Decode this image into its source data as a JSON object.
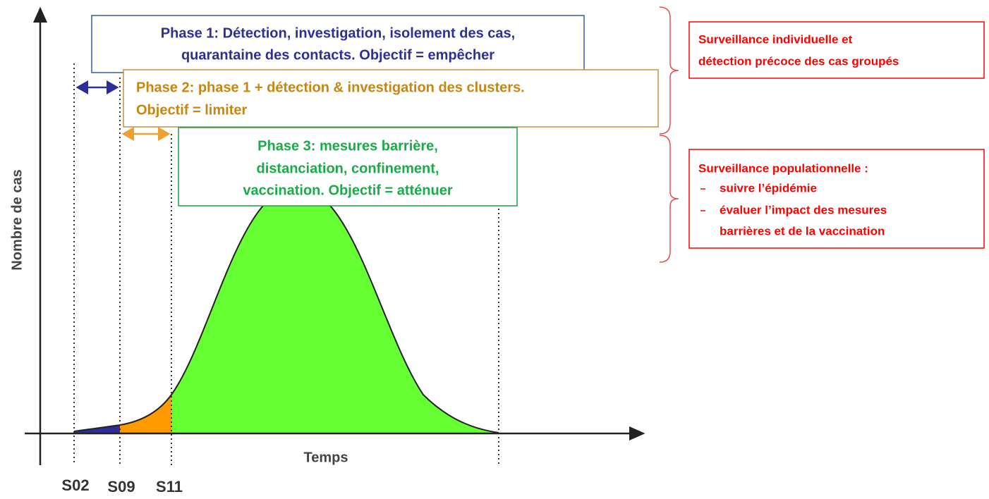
{
  "axes": {
    "y_label": "Nombre de cas",
    "x_label": "Temps",
    "week_labels": [
      "S02",
      "S09",
      "S11"
    ]
  },
  "phases": [
    {
      "lines": [
        "Phase 1: Détection, investigation, isolement des cas,",
        "quarantaine des contacts. Objectif = empêcher"
      ]
    },
    {
      "lines": [
        "Phase 2: phase 1 + détection & investigation des clusters.",
        "Objectif = limiter"
      ]
    },
    {
      "lines": [
        "Phase 3: mesures barrière,",
        "distanciation, confinement,",
        "vaccination. Objectif = atténuer"
      ]
    }
  ],
  "surveillance": [
    {
      "lines": [
        "Surveillance individuelle et",
        "détection précoce des cas groupés"
      ]
    },
    {
      "title": "Surveillance populationnelle :",
      "items": [
        [
          "suivre l’épidémie"
        ],
        [
          "évaluer l’impact des mesures",
          "barrières et de la vaccination"
        ]
      ]
    }
  ]
}
